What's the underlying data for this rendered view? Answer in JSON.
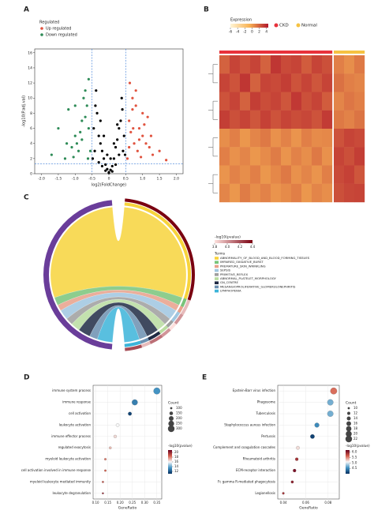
{
  "chart_data": [
    {
      "type": "volcano",
      "panel": "A",
      "legend_title": "Regulated",
      "xlabel": "log2(FoldChange)",
      "ylabel": "-log10(P.adj.val)",
      "xlim": [
        -2.2,
        2.2
      ],
      "ylim": [
        0,
        16.5
      ],
      "xticks": [
        {
          "value": -2,
          "label": "-2.0"
        },
        -1.5,
        {
          "value": -1,
          "label": "-1.0"
        },
        -0.5,
        0,
        0.5,
        {
          "value": 1,
          "label": "1.0"
        },
        1.5,
        {
          "value": 2,
          "label": "2.0"
        }
      ],
      "yticks": [
        0,
        2,
        4,
        6,
        8,
        10,
        12,
        14,
        16
      ],
      "vlines": [
        -0.5,
        0.5
      ],
      "hline": 1.3,
      "series": [
        {
          "name": "Up regulated",
          "color": "#e0533f",
          "x": [
            0.6,
            0.7,
            0.8,
            0.9,
            1.0,
            1.1,
            1.2,
            1.3,
            1.5,
            1.7,
            0.65,
            0.75,
            0.85,
            0.95,
            1.05,
            1.15,
            0.55,
            0.6,
            0.7,
            0.8,
            1.0,
            1.25,
            0.9,
            0.62,
            0.72
          ],
          "y": [
            7,
            8.5,
            9,
            6,
            5,
            4,
            3.5,
            2.5,
            3,
            1.8,
            5.5,
            4,
            3,
            2.2,
            6.5,
            7.5,
            2,
            3.5,
            10,
            11,
            8,
            5,
            4.5,
            12,
            6
          ]
        },
        {
          "name": "Down regulated",
          "color": "#2e8b57",
          "x": [
            -0.6,
            -0.7,
            -0.8,
            -0.9,
            -1.0,
            -1.1,
            -1.2,
            -1.3,
            -1.5,
            -1.7,
            -0.65,
            -0.75,
            -0.85,
            -0.95,
            -1.05,
            -0.55,
            -0.6,
            -0.7,
            -0.8,
            -1.0,
            -1.25,
            -0.62
          ],
          "y": [
            6,
            7.5,
            4.5,
            3,
            5,
            3.5,
            8.5,
            2,
            6,
            2.5,
            9,
            10,
            5.5,
            4,
            2.2,
            3,
            12.5,
            11,
            7,
            9,
            4,
            2
          ]
        },
        {
          "color": "#000000",
          "x": [
            -0.45,
            -0.4,
            -0.35,
            -0.3,
            -0.25,
            -0.2,
            -0.15,
            -0.1,
            -0.05,
            0,
            0.05,
            0.1,
            0.15,
            0.2,
            0.25,
            0.3,
            0.35,
            0.4,
            0.45,
            -0.42,
            -0.3,
            -0.2,
            -0.1,
            0,
            0.1,
            0.2,
            0.3,
            0.42,
            -0.38,
            0.38,
            -0.48,
            0.48,
            -0.25,
            0.25,
            -0.15,
            0.15,
            -0.05,
            0.05
          ],
          "y": [
            6,
            9,
            8,
            5,
            4,
            3,
            2,
            1.2,
            0.6,
            0.2,
            0.5,
            1,
            2,
            3.5,
            4.5,
            6,
            7,
            8.5,
            5,
            3,
            1.5,
            1,
            0.4,
            0.1,
            0.3,
            1.2,
            2.5,
            3,
            11,
            10,
            2,
            2.5,
            7,
            6.5,
            5,
            4,
            2.5,
            2
          ]
        }
      ]
    },
    {
      "type": "heatmap",
      "panel": "B",
      "legend_title": "Expression",
      "clim": [
        -6,
        4.5
      ],
      "cticks": [
        -6,
        -4,
        -2,
        0,
        2,
        4
      ],
      "groups": [
        {
          "name": "CKD",
          "color": "#e8323c",
          "columns": 11
        },
        {
          "name": "Normal",
          "color": "#f5c242",
          "columns": 3
        }
      ],
      "values": [
        [
          2,
          3,
          2.5,
          3,
          2,
          3.5,
          2.8,
          3,
          2.2,
          3,
          2.6,
          1,
          0.5,
          1.2
        ],
        [
          3,
          2.5,
          3.5,
          2,
          3,
          2.8,
          3.2,
          2.5,
          3,
          2.4,
          3,
          1.5,
          1,
          0.8
        ],
        [
          2.5,
          3,
          2,
          3.2,
          2.7,
          3,
          2.4,
          3.4,
          2.6,
          3,
          2.2,
          0.8,
          1.3,
          1
        ],
        [
          3.2,
          2.6,
          3,
          2.4,
          3.1,
          2.5,
          3,
          2.7,
          2.9,
          2.5,
          3.3,
          1.2,
          0.9,
          1.4
        ],
        [
          0.5,
          1,
          0.2,
          0.8,
          1.2,
          0.4,
          0.9,
          0.3,
          1,
          0.6,
          0.7,
          2.5,
          3,
          2.8
        ],
        [
          1,
          0.4,
          0.8,
          0.2,
          0.6,
          1.1,
          0.3,
          0.9,
          0.5,
          1.2,
          0.4,
          3,
          2.6,
          3.2
        ],
        [
          0.3,
          0.9,
          0.5,
          1,
          0.2,
          0.7,
          1.2,
          0.4,
          0.8,
          0.3,
          1,
          2.8,
          3.1,
          2.4
        ],
        [
          0.8,
          0.2,
          1.1,
          0.5,
          0.9,
          0.3,
          0.6,
          1,
          0.2,
          0.8,
          0.5,
          2.6,
          2.9,
          3
        ]
      ]
    },
    {
      "type": "chord",
      "panel": "C",
      "legend_title": "-log10(pvalue)",
      "terms_title": "Terms",
      "gene_color": "#6a3d9a",
      "clim": [
        3.8,
        4.4
      ],
      "cticks": [
        3.8,
        {
          "value": 4,
          "label": "4.0"
        },
        4.2,
        4.4
      ],
      "terms": [
        "ABNORMALITY_OF_BLOOD_AND_BLOOD_FORMING_TISSUES",
        "IMPAIRED_OXIDATIVE_BURST",
        "PREMATURE_SKIN_WRINKLING",
        "SEPSIS",
        "PRIMITIVE_REFLEX",
        "ABNORMAL_PLATELET_MORPHOLOGY",
        "GN_CENTRE",
        "MESANGIOPROLIFERATIVE_GLOMERULONEPHRITIS",
        "LYMPHOPENIA"
      ],
      "colors": [
        "#f7d33c",
        "#79c47a",
        "#e8a08a",
        "#9fc6e0",
        "#9e9e9e",
        "#b9dca0",
        "#1f2a44",
        "#6b8fb0",
        "#3cb4d9"
      ],
      "counts": [
        120,
        8,
        6,
        10,
        7,
        9,
        12,
        8,
        15
      ],
      "pvalues": [
        4.4,
        3.9,
        3.9,
        4.0,
        3.8,
        4.0,
        4.1,
        3.9,
        4.2
      ]
    },
    {
      "type": "dot",
      "panel": "D",
      "xlabel": "GeneRatio",
      "size_title": "Count",
      "color_title": "-log10(pvalue)",
      "categories": [
        "immune system process",
        "immune response",
        "cell activation",
        "leukocyte activation",
        "immune effector process",
        "regulated exocytosis",
        "myeloid leukocyte activation",
        "cell activation involved in immune response",
        "myeloid leukocyte mediated immunity",
        "leukocyte degranulation"
      ],
      "values": [
        0.35,
        0.26,
        0.24,
        0.19,
        0.18,
        0.16,
        0.14,
        0.14,
        0.13,
        0.13
      ],
      "counts": [
        300,
        250,
        150,
        140,
        130,
        110,
        100,
        95,
        90,
        85
      ],
      "pvalues": [
        13.5,
        13,
        11.5,
        16,
        16.5,
        17,
        18,
        18.5,
        19,
        20
      ],
      "xlim": [
        0.09,
        0.37
      ],
      "xticks": [
        {
          "value": 0.1,
          "label": "0.10"
        },
        0.15,
        {
          "value": 0.2,
          "label": "0.20"
        },
        0.25,
        {
          "value": 0.3,
          "label": "0.30"
        },
        0.35
      ],
      "size_ticks": [
        100,
        150,
        200,
        250,
        300
      ],
      "clim": [
        11,
        21
      ],
      "cticks": [
        12,
        14,
        16,
        18,
        20
      ]
    },
    {
      "type": "dot",
      "panel": "E",
      "xlabel": "GeneRatio",
      "size_title": "Count",
      "color_title": "-log10(pvalue)",
      "categories": [
        "Epstein-Barr virus infection",
        "Phagosome",
        "Tuberculosis",
        "Staphylococcus aureus infection",
        "Pertussis",
        "Complement and coagulation cascades",
        "Rheumatoid arthritis",
        "ECM-receptor interaction",
        "Fc gamma R-mediated phagocytosis",
        "Legionellosis"
      ],
      "values": [
        0.085,
        0.082,
        0.082,
        0.07,
        0.066,
        0.053,
        0.052,
        0.05,
        0.048,
        0.04
      ],
      "counts": [
        22,
        20,
        20,
        16,
        15,
        13,
        12,
        12,
        11,
        10
      ],
      "pvalues": [
        5.6,
        4.7,
        4.7,
        4.5,
        4.1,
        5.2,
        5.9,
        6.1,
        6.0,
        5.9
      ],
      "xlim": [
        0.035,
        0.09
      ],
      "xticks": [
        0.04,
        0.06,
        0.08
      ],
      "size_ticks": [
        10,
        12,
        14,
        16,
        18,
        20,
        22
      ],
      "clim": [
        4,
        6.2
      ],
      "cticks": [
        4.5,
        {
          "value": 5,
          "label": "5.0"
        },
        5.5,
        {
          "value": 6,
          "label": "6.0"
        }
      ]
    }
  ]
}
